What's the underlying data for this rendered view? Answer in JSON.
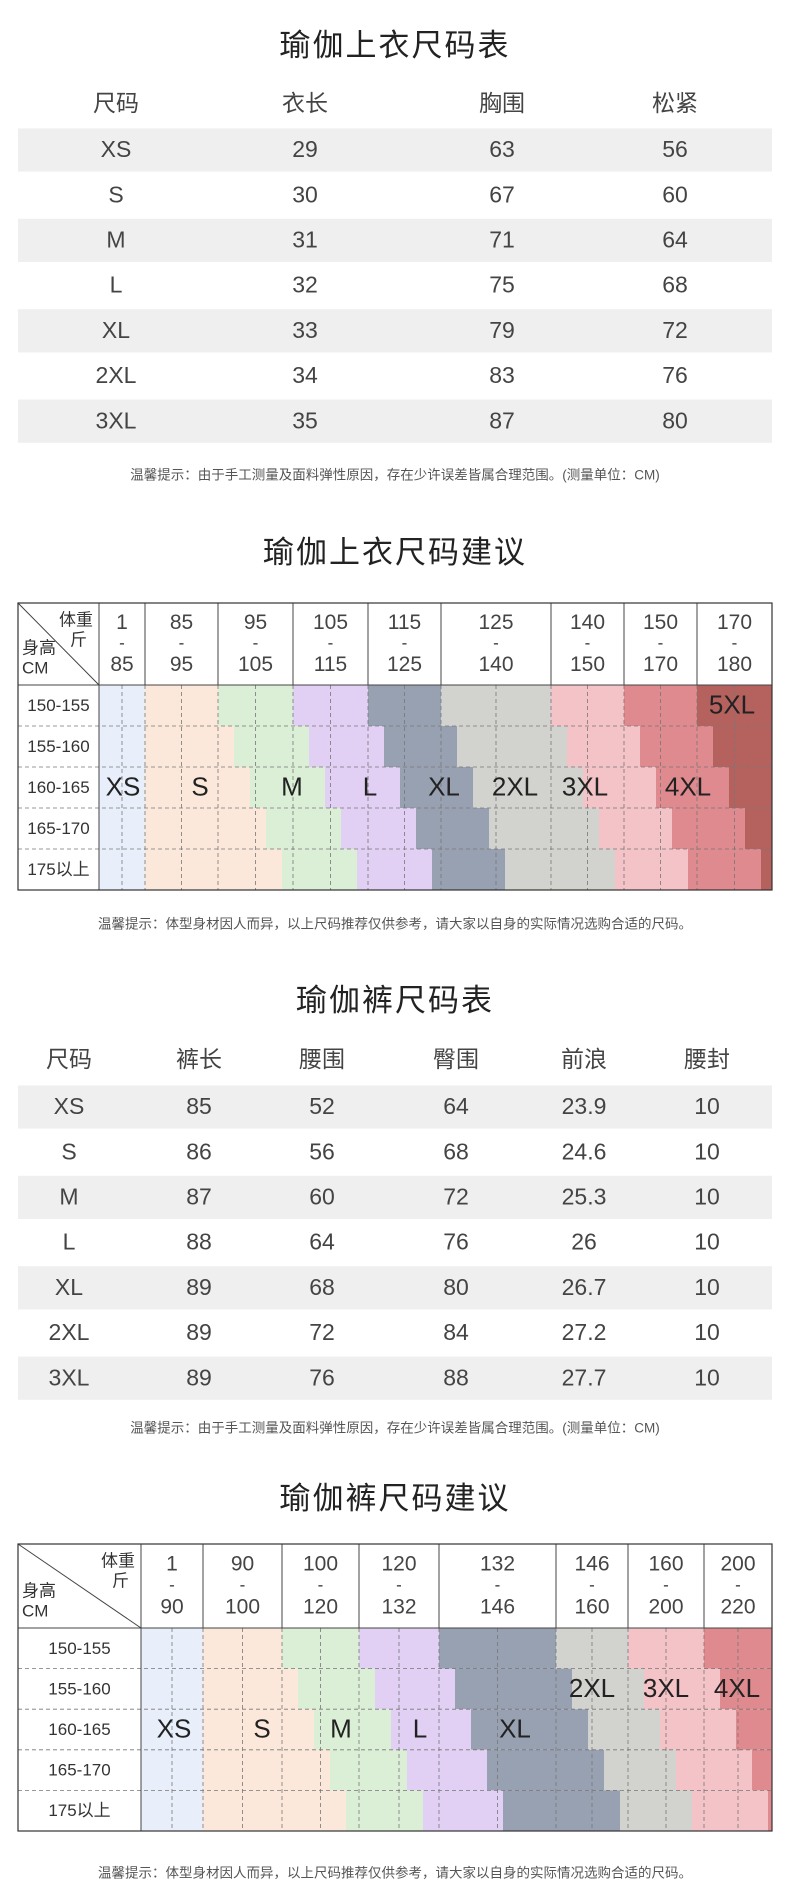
{
  "table_tops": {
    "title": "瑜伽上衣尺码表",
    "header": [
      "尺码",
      "衣长",
      "胸围",
      "松紧"
    ],
    "rows": [
      [
        "XS",
        29,
        63,
        56
      ],
      [
        "S",
        30,
        67,
        60
      ],
      [
        "M",
        31,
        71,
        64
      ],
      [
        "L",
        32,
        75,
        68
      ],
      [
        "XL",
        33,
        79,
        72
      ],
      [
        "2XL",
        34,
        83,
        76
      ],
      [
        "3XL",
        35,
        87,
        80
      ]
    ],
    "note": "温馨提示：由于手工测量及面料弹性原因，存在少许误差皆属合理范围。(测量单位：CM)"
  },
  "suggest_tops": {
    "title": "瑜伽上衣尺码建议",
    "weight_label": "体重",
    "weight_unit": "斤",
    "height_label": "身高",
    "height_unit": "CM",
    "range_separator": "-",
    "weights": [
      {
        "min": 1,
        "max": 85
      },
      {
        "min": 85,
        "max": 95
      },
      {
        "min": 95,
        "max": 105
      },
      {
        "min": 105,
        "max": 115
      },
      {
        "min": 115,
        "max": 125
      },
      {
        "min": 125,
        "max": 140
      },
      {
        "min": 140,
        "max": 150
      },
      {
        "min": 150,
        "max": 170
      },
      {
        "min": 170,
        "max": 180
      }
    ],
    "heights": [
      "150-155",
      "155-160",
      "160-165",
      "165-170",
      "175以上"
    ],
    "sizes": [
      {
        "label": "XS",
        "color": "#e8effb"
      },
      {
        "label": "S",
        "color": "#fbe8da"
      },
      {
        "label": "M",
        "color": "#dbefd7"
      },
      {
        "label": "L",
        "color": "#e1d0f4"
      },
      {
        "label": "XL",
        "color": "#98a1b2"
      },
      {
        "label": "2XL",
        "color": "#d2d2cf"
      },
      {
        "label": "3XL",
        "color": "#f3c3c7"
      },
      {
        "label": "4XL",
        "color": "#df8a8e"
      },
      {
        "label": "5XL",
        "color": "#b5625f"
      }
    ],
    "note": "温馨提示：体型身材因人而异，以上尺码推荐仅供参考，请大家以自身的实际情况选购合适的尺码。"
  },
  "table_pants": {
    "title": "瑜伽裤尺码表",
    "header": [
      "尺码",
      "裤长",
      "腰围",
      "臀围",
      "前浪",
      "腰封"
    ],
    "rows": [
      [
        "XS",
        85,
        52,
        64,
        23.9,
        10
      ],
      [
        "S",
        86,
        56,
        68,
        24.6,
        10
      ],
      [
        "M",
        87,
        60,
        72,
        25.3,
        10
      ],
      [
        "L",
        88,
        64,
        76,
        26,
        10
      ],
      [
        "XL",
        89,
        68,
        80,
        26.7,
        10
      ],
      [
        "2XL",
        89,
        72,
        84,
        27.2,
        10
      ],
      [
        "3XL",
        89,
        76,
        88,
        27.7,
        10
      ]
    ],
    "note": "温馨提示：由于手工测量及面料弹性原因，存在少许误差皆属合理范围。(测量单位：CM)"
  },
  "suggest_pants": {
    "title": "瑜伽裤尺码建议",
    "weight_label": "体重",
    "weight_unit": "斤",
    "height_label": "身高",
    "height_unit": "CM",
    "range_separator": "-",
    "weights": [
      {
        "min": 1,
        "max": 90
      },
      {
        "min": 90,
        "max": 100
      },
      {
        "min": 100,
        "max": 120
      },
      {
        "min": 120,
        "max": 132
      },
      {
        "min": 132,
        "max": 146
      },
      {
        "min": 146,
        "max": 160
      },
      {
        "min": 160,
        "max": 200
      },
      {
        "min": 200,
        "max": 220
      }
    ],
    "heights": [
      "150-155",
      "155-160",
      "160-165",
      "165-170",
      "175以上"
    ],
    "sizes": [
      {
        "label": "XS",
        "color": "#e8effb"
      },
      {
        "label": "S",
        "color": "#fbe8da"
      },
      {
        "label": "M",
        "color": "#dbefd7"
      },
      {
        "label": "L",
        "color": "#e1d0f4"
      },
      {
        "label": "XL",
        "color": "#98a1b2"
      },
      {
        "label": "2XL",
        "color": "#d2d2cf"
      },
      {
        "label": "3XL",
        "color": "#f3c3c7"
      },
      {
        "label": "4XL",
        "color": "#df8a8e"
      }
    ],
    "note": "温馨提示：体型身材因人而异，以上尺码推荐仅供参考，请大家以自身的实际情况选购合适的尺码。"
  }
}
